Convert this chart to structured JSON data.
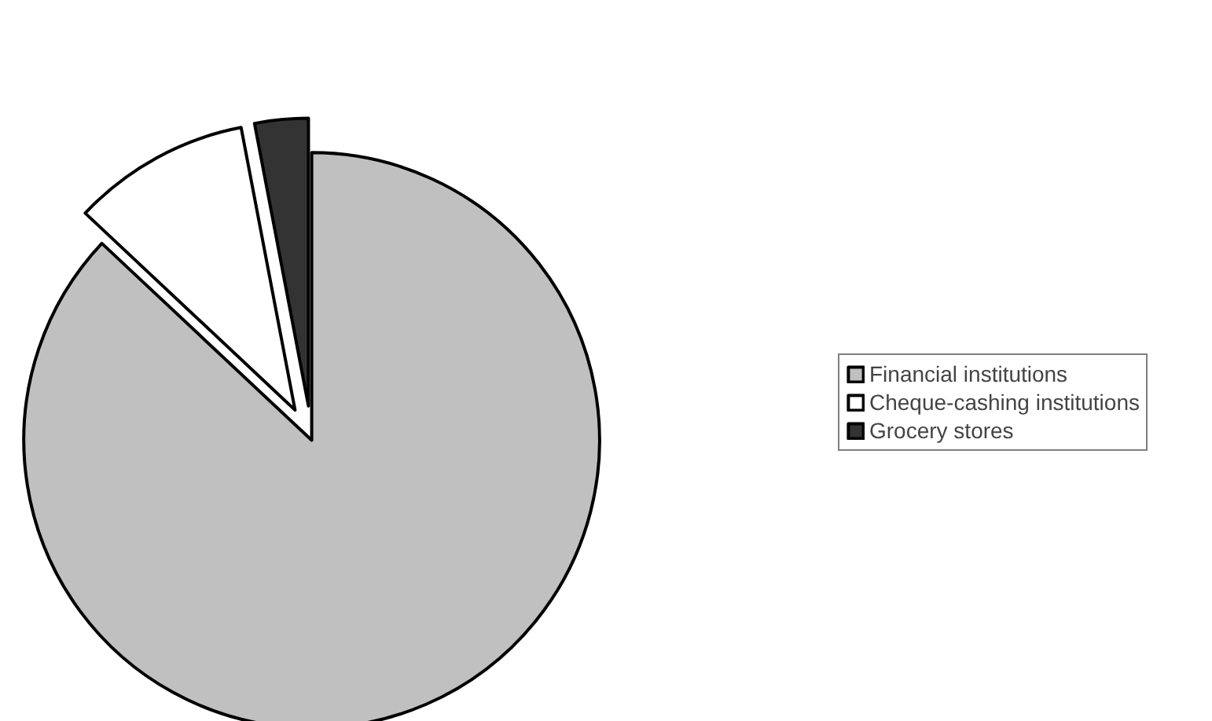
{
  "chart_data": {
    "type": "pie",
    "categories": [
      "Financial institutions",
      "Cheque-cashing institutions",
      "Grocery stores"
    ],
    "values": [
      87,
      10,
      3
    ],
    "colors": [
      "#c0c0c0",
      "#ffffff",
      "#333333"
    ],
    "legend": "right"
  }
}
